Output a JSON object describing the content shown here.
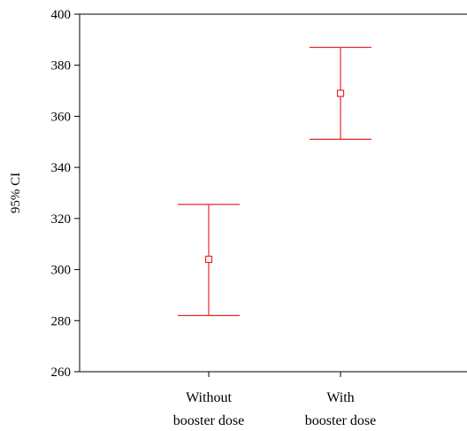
{
  "chart_data": {
    "type": "errorbar",
    "ylabel": "95% CI",
    "xlabel": "",
    "title": "",
    "ylim": [
      260,
      400
    ],
    "yticks": [
      260,
      280,
      300,
      320,
      340,
      360,
      380,
      400
    ],
    "categories": [
      [
        "Without",
        "booster dose"
      ],
      [
        "With",
        "booster dose"
      ]
    ],
    "series": [
      {
        "mean": [
          304,
          369
        ],
        "lower": [
          282,
          351
        ],
        "upper": [
          325.5,
          387
        ],
        "color": "#e8272a"
      }
    ],
    "grid": false,
    "legend": "none",
    "axis_color": "#000000"
  }
}
